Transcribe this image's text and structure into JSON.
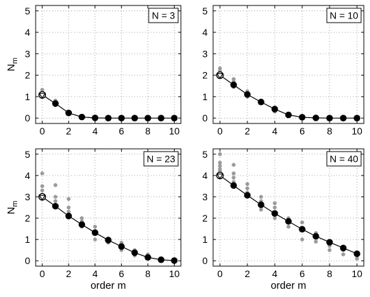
{
  "chart_data": [
    {
      "type": "scatter",
      "title": "",
      "annotation": "N = 3",
      "xlabel": "",
      "ylabel": "N_m",
      "xlim": [
        -0.5,
        10.5
      ],
      "ylim": [
        -0.25,
        5.25
      ],
      "xticks": [
        0,
        2,
        4,
        6,
        8,
        10
      ],
      "yticks": [
        0,
        1,
        2,
        3,
        4,
        5
      ],
      "grid": true,
      "series": [
        {
          "role": "mean",
          "color": "#000000",
          "x": [
            0,
            1,
            2,
            3,
            4,
            5,
            6,
            7,
            8,
            9,
            10
          ],
          "y": [
            1.08,
            0.68,
            0.24,
            0.05,
            0.01,
            0.0,
            0.0,
            0.0,
            0.0,
            0.0,
            0.0
          ]
        },
        {
          "role": "samples",
          "color": "#9a9a9a",
          "x": [
            0,
            0,
            0,
            1,
            1,
            2,
            2
          ],
          "y": [
            1.32,
            1.18,
            1.0,
            0.82,
            0.6,
            0.3,
            0.2
          ]
        }
      ]
    },
    {
      "type": "scatter",
      "title": "",
      "annotation": "N = 10",
      "xlabel": "",
      "ylabel": "",
      "xlim": [
        -0.5,
        10.5
      ],
      "ylim": [
        -0.25,
        5.25
      ],
      "xticks": [
        0,
        2,
        4,
        6,
        8,
        10
      ],
      "yticks": [
        0,
        1,
        2,
        3,
        4,
        5
      ],
      "grid": true,
      "series": [
        {
          "role": "mean",
          "color": "#000000",
          "x": [
            0,
            1,
            2,
            3,
            4,
            5,
            6,
            7,
            8,
            9,
            10
          ],
          "y": [
            2.0,
            1.55,
            1.1,
            0.75,
            0.42,
            0.15,
            0.04,
            0.01,
            0.0,
            0.0,
            0.0
          ]
        },
        {
          "role": "samples",
          "color": "#9a9a9a",
          "x": [
            0,
            0,
            0,
            1,
            1,
            1,
            2,
            2,
            3,
            4,
            4,
            5
          ],
          "y": [
            2.32,
            2.2,
            2.1,
            1.82,
            1.7,
            1.45,
            1.25,
            1.0,
            0.8,
            0.5,
            0.3,
            0.1
          ]
        }
      ]
    },
    {
      "type": "scatter",
      "title": "",
      "annotation": "N = 23",
      "xlabel": "order m",
      "ylabel": "N_m",
      "xlim": [
        -0.5,
        10.5
      ],
      "ylim": [
        -0.25,
        5.25
      ],
      "xticks": [
        0,
        2,
        4,
        6,
        8,
        10
      ],
      "yticks": [
        0,
        1,
        2,
        3,
        4,
        5
      ],
      "grid": true,
      "series": [
        {
          "role": "mean",
          "color": "#000000",
          "x": [
            0,
            1,
            2,
            3,
            4,
            5,
            6,
            7,
            8,
            9,
            10
          ],
          "y": [
            3.0,
            2.56,
            2.1,
            1.7,
            1.32,
            0.97,
            0.67,
            0.38,
            0.16,
            0.05,
            0.01
          ]
        },
        {
          "role": "samples",
          "color": "#9a9a9a",
          "x": [
            0,
            0,
            0,
            0,
            1,
            1,
            1,
            1,
            2,
            2,
            2,
            3,
            3,
            3,
            4,
            4,
            4,
            5,
            5,
            6,
            6,
            7,
            7,
            8,
            8
          ],
          "y": [
            4.1,
            3.5,
            3.3,
            3.1,
            3.55,
            3.0,
            2.8,
            2.6,
            2.9,
            2.5,
            2.3,
            2.0,
            1.85,
            1.6,
            1.6,
            1.4,
            1.0,
            1.05,
            0.85,
            0.85,
            0.5,
            0.5,
            0.25,
            0.3,
            0.1
          ]
        }
      ]
    },
    {
      "type": "scatter",
      "title": "",
      "annotation": "N = 40",
      "xlabel": "order m",
      "ylabel": "",
      "xlim": [
        -0.5,
        10.5
      ],
      "ylim": [
        -0.25,
        5.25
      ],
      "xticks": [
        0,
        2,
        4,
        6,
        8,
        10
      ],
      "yticks": [
        0,
        1,
        2,
        3,
        4,
        5
      ],
      "grid": true,
      "series": [
        {
          "role": "mean",
          "color": "#000000",
          "x": [
            0,
            1,
            2,
            3,
            4,
            5,
            6,
            7,
            8,
            9,
            10
          ],
          "y": [
            4.0,
            3.53,
            3.07,
            2.63,
            2.22,
            1.85,
            1.48,
            1.15,
            0.87,
            0.6,
            0.33
          ]
        },
        {
          "role": "samples",
          "color": "#9a9a9a",
          "x": [
            0,
            0,
            0,
            0,
            0,
            0,
            1,
            1,
            1,
            1,
            1,
            2,
            2,
            2,
            2,
            3,
            3,
            3,
            4,
            4,
            4,
            5,
            5,
            6,
            6,
            7,
            7,
            8,
            8,
            9,
            9,
            10,
            10
          ],
          "y": [
            5.0,
            4.6,
            4.45,
            4.3,
            4.2,
            4.1,
            4.5,
            4.1,
            3.9,
            3.7,
            3.6,
            3.6,
            3.4,
            3.2,
            3.1,
            3.0,
            2.8,
            2.4,
            2.7,
            2.5,
            2.0,
            2.0,
            1.6,
            1.8,
            1.0,
            1.3,
            0.9,
            0.7,
            0.5,
            0.5,
            0.3,
            0.25,
            0.1
          ]
        }
      ]
    }
  ]
}
